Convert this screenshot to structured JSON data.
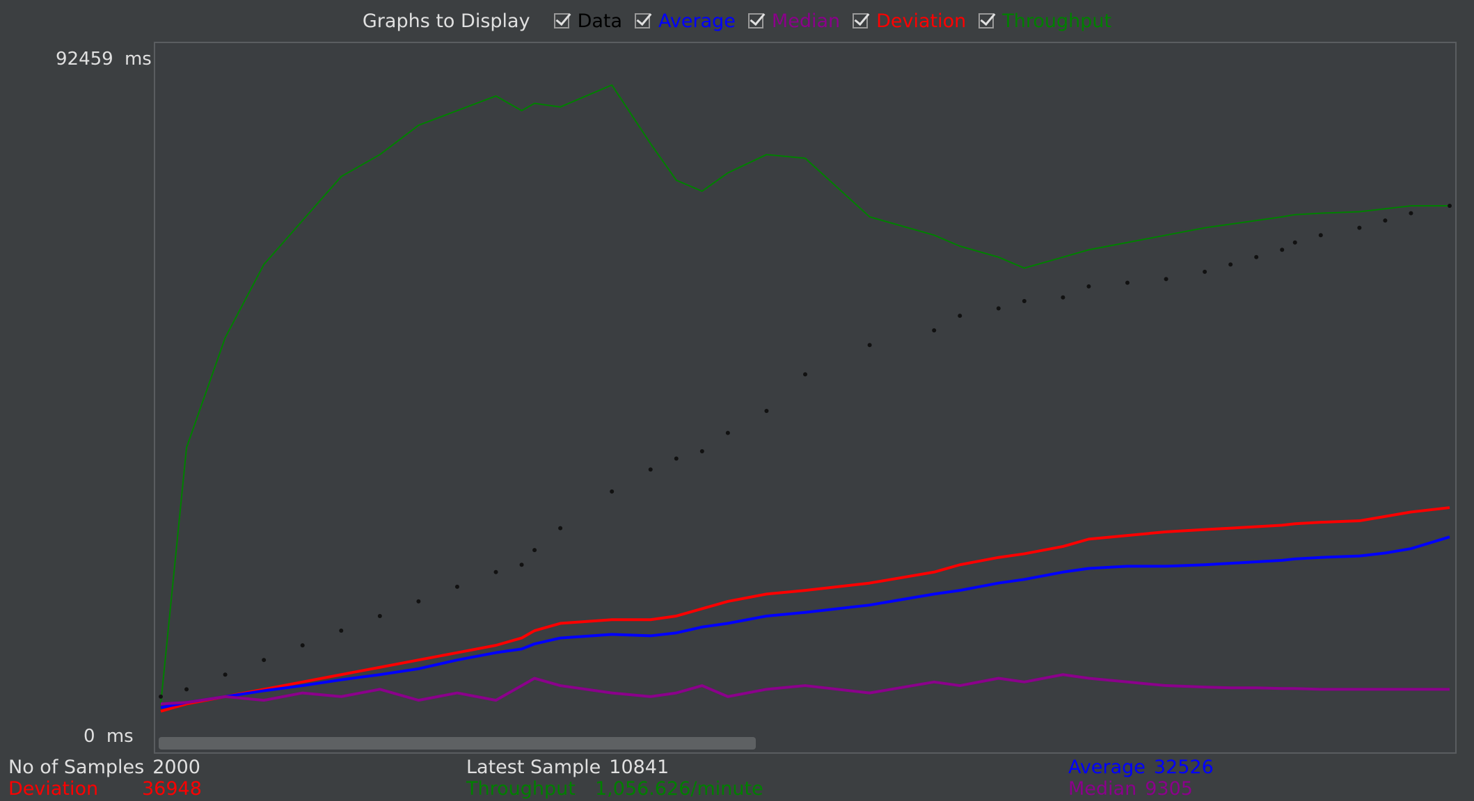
{
  "legend": {
    "title": "Graphs to Display",
    "items": [
      {
        "label": "Data",
        "color": "#000000"
      },
      {
        "label": "Average",
        "color": "#0000ff"
      },
      {
        "label": "Median",
        "color": "#8b008b"
      },
      {
        "label": "Deviation",
        "color": "#ff0000"
      },
      {
        "label": "Throughput",
        "color": "#008000"
      }
    ]
  },
  "axis": {
    "y_max_value": "92459",
    "y_max_unit": "ms",
    "y_min_value": "0",
    "y_min_unit": "ms"
  },
  "stats": {
    "samples_label": "No of Samples",
    "samples_value": "2000",
    "deviation_label": "Deviation",
    "deviation_value": "36948",
    "latest_label": "Latest Sample",
    "latest_value": "10841",
    "throughput_label": "Throughput",
    "throughput_value": "1,056.626/minute",
    "average_label": "Average",
    "average_value": "32526",
    "median_label": "Median",
    "median_value": "9305"
  },
  "chart_data": {
    "type": "line",
    "ylim": [
      0,
      92459
    ],
    "yunit": "ms",
    "x_label_note": "",
    "x": [
      0,
      2,
      5,
      8,
      11,
      14,
      17,
      20,
      23,
      26,
      28,
      29,
      31,
      35,
      38,
      40,
      42,
      44,
      47,
      50,
      55,
      60,
      62,
      65,
      67,
      70,
      72,
      75,
      78,
      81,
      83,
      85,
      87,
      88,
      90,
      93,
      95,
      97,
      100
    ],
    "series": [
      {
        "name": "Throughput",
        "color": "#008000",
        "values": [
          3000,
          38000,
          53000,
          63000,
          69000,
          75000,
          78000,
          82000,
          84000,
          86000,
          84000,
          85000,
          84500,
          87500,
          79500,
          74500,
          73000,
          75500,
          78000,
          77500,
          69500,
          67000,
          65500,
          64000,
          62500,
          64000,
          65000,
          66000,
          67000,
          68000,
          68500,
          69000,
          69500,
          69800,
          70000,
          70200,
          70600,
          71000,
          71000
        ]
      },
      {
        "name": "Data",
        "color": "#111111",
        "values": [
          4000,
          5000,
          7000,
          9000,
          11000,
          13000,
          15000,
          17000,
          19000,
          21000,
          22000,
          24000,
          27000,
          32000,
          35000,
          36500,
          37500,
          40000,
          43000,
          48000,
          52000,
          54000,
          56000,
          57000,
          58000,
          58500,
          60000,
          60500,
          61000,
          62000,
          63000,
          64000,
          65000,
          66000,
          67000,
          68000,
          69000,
          70000,
          71000
        ]
      },
      {
        "name": "Deviation",
        "color": "#ff0000",
        "values": [
          2000,
          3000,
          4000,
          5000,
          6000,
          7000,
          8000,
          9000,
          10000,
          11000,
          12000,
          13000,
          14000,
          14500,
          14500,
          15000,
          16000,
          17000,
          18000,
          18500,
          19500,
          21000,
          22000,
          23000,
          23500,
          24500,
          25500,
          26000,
          26500,
          26800,
          27000,
          27200,
          27400,
          27600,
          27800,
          28000,
          28600,
          29200,
          29800
        ]
      },
      {
        "name": "Average",
        "color": "#0000ff",
        "values": [
          2500,
          3200,
          4000,
          4800,
          5500,
          6300,
          7000,
          7800,
          9000,
          10000,
          10500,
          11200,
          12000,
          12500,
          12300,
          12700,
          13500,
          14000,
          15000,
          15500,
          16500,
          18000,
          18500,
          19500,
          20000,
          21000,
          21500,
          21800,
          21800,
          22000,
          22200,
          22400,
          22600,
          22800,
          23000,
          23200,
          23600,
          24200,
          25800
        ]
      },
      {
        "name": "Median",
        "color": "#8b008b",
        "values": [
          3000,
          3200,
          4000,
          3500,
          4500,
          4000,
          5000,
          3500,
          4500,
          3500,
          5500,
          6500,
          5500,
          4500,
          4000,
          4500,
          5500,
          4000,
          5000,
          5500,
          4500,
          6000,
          5500,
          6500,
          6000,
          7000,
          6500,
          6000,
          5500,
          5300,
          5200,
          5200,
          5100,
          5100,
          5000,
          5000,
          5000,
          5000,
          5000
        ]
      }
    ]
  }
}
